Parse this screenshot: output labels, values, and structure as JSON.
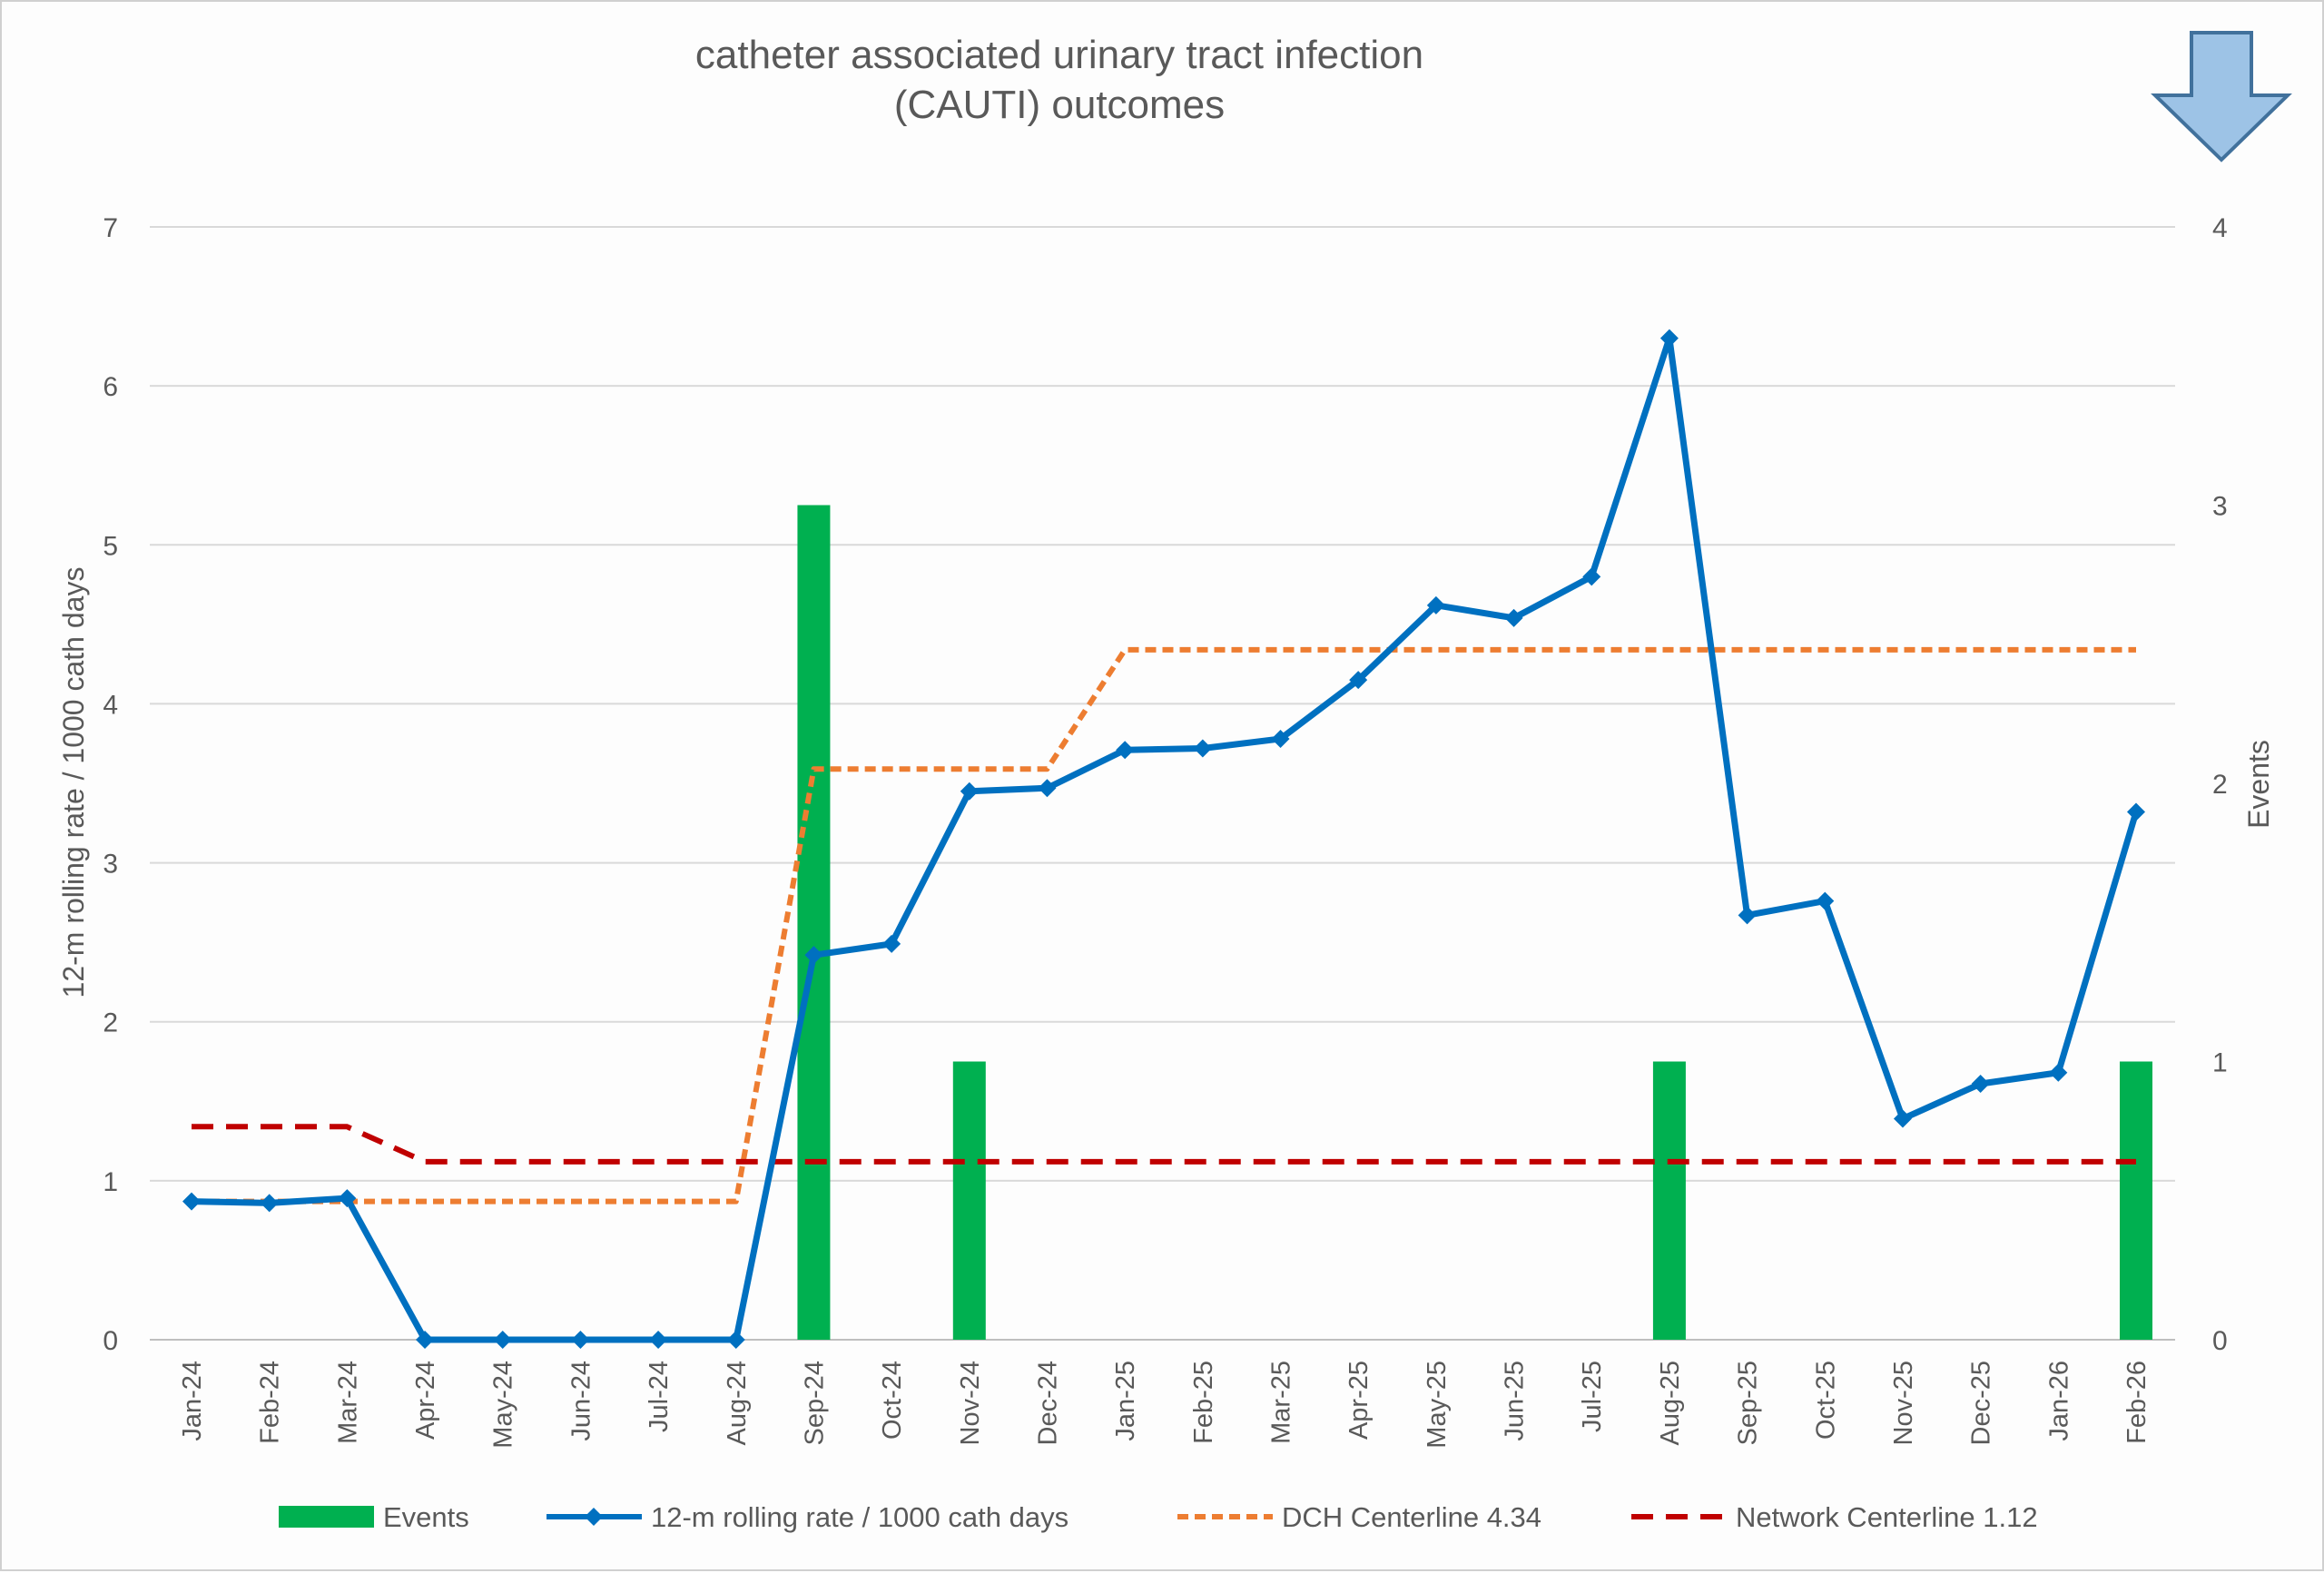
{
  "chart_data": {
    "type": "bar+line",
    "title": [
      "catheter associated urinary tract infection",
      "(CAUTI) outcomes"
    ],
    "ylabel": "12-m rolling rate / 1000 cath days",
    "y2label": "Events",
    "ylim": [
      0,
      7
    ],
    "y2lim": [
      0,
      4
    ],
    "yticks": [
      0,
      1,
      2,
      3,
      4,
      5,
      6,
      7
    ],
    "y2ticks": [
      0,
      1,
      2,
      3,
      4
    ],
    "grid": true,
    "legend_position": "bottom",
    "categories": [
      "Jan-24",
      "Feb-24",
      "Mar-24",
      "Apr-24",
      "May-24",
      "Jun-24",
      "Jul-24",
      "Aug-24",
      "Sep-24",
      "Oct-24",
      "Nov-24",
      "Dec-24",
      "Jan-25",
      "Feb-25",
      "Mar-25",
      "Apr-25",
      "May-25",
      "Jun-25",
      "Jul-25",
      "Aug-25",
      "Sep-25",
      "Oct-25",
      "Nov-25",
      "Dec-25",
      "Jan-26",
      "Feb-26"
    ],
    "series": [
      {
        "name": "Events",
        "type": "bar",
        "axis": "right",
        "color": "#00b050",
        "values": [
          0,
          0,
          0,
          0,
          0,
          0,
          0,
          0,
          3,
          0,
          1,
          0,
          0,
          0,
          0,
          0,
          0,
          0,
          0,
          1,
          0,
          0,
          0,
          0,
          0,
          1
        ]
      },
      {
        "name": "12-m rolling rate / 1000 cath days",
        "type": "line",
        "marker": "diamond",
        "color": "#0070c0",
        "values": [
          0.87,
          0.86,
          0.89,
          0,
          0,
          0,
          0,
          0,
          2.42,
          2.49,
          3.45,
          3.47,
          3.71,
          3.72,
          3.78,
          4.15,
          4.62,
          4.54,
          4.8,
          6.3,
          2.67,
          2.76,
          1.39,
          1.61,
          1.68,
          3.32
        ]
      },
      {
        "name": "DCH Centerline 4.34",
        "type": "line",
        "dash": "dotted",
        "color": "#ed7d31",
        "values": [
          0.87,
          0.87,
          0.87,
          0.87,
          0.87,
          0.87,
          0.87,
          0.87,
          3.59,
          3.59,
          3.59,
          3.59,
          4.34,
          4.34,
          4.34,
          4.34,
          4.34,
          4.34,
          4.34,
          4.34,
          4.34,
          4.34,
          4.34,
          4.34,
          4.34,
          4.34
        ]
      },
      {
        "name": "Network Centerline 1.12",
        "type": "line",
        "dash": "dashed",
        "color": "#c00000",
        "values": [
          1.34,
          1.34,
          1.34,
          1.12,
          1.12,
          1.12,
          1.12,
          1.12,
          1.12,
          1.12,
          1.12,
          1.12,
          1.12,
          1.12,
          1.12,
          1.12,
          1.12,
          1.12,
          1.12,
          1.12,
          1.12,
          1.12,
          1.12,
          1.12,
          1.12,
          1.12
        ]
      }
    ]
  },
  "indicator": {
    "icon": "down-arrow-icon",
    "color": "#9dc3e6"
  }
}
